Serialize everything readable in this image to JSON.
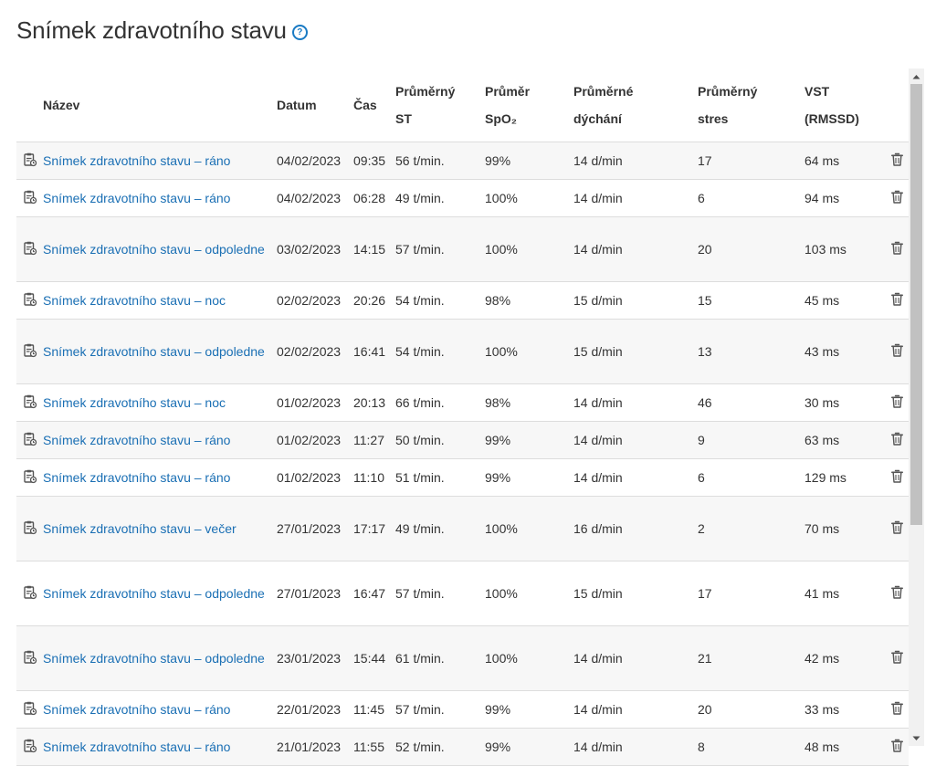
{
  "page": {
    "title": "Snímek zdravotního stavu"
  },
  "table": {
    "headers": {
      "name": "Název",
      "date": "Datum",
      "time": "Čas",
      "avg_hr": [
        "Průměrný",
        "ST"
      ],
      "avg_spo2": [
        "Průměr",
        "SpO₂"
      ],
      "avg_resp": [
        "Průměrné",
        "dýchání"
      ],
      "avg_stress": [
        "Průměrný",
        "stres"
      ],
      "hrv": [
        "VST",
        "(RMSSD)"
      ]
    },
    "rows": [
      {
        "name": "Snímek zdravotního stavu – ráno",
        "date": "04/02/2023",
        "time": "09:35",
        "hr": "56 t/min.",
        "spo2": "99%",
        "resp": "14 d/min",
        "stress": "17",
        "hrv": "64 ms"
      },
      {
        "name": "Snímek zdravotního stavu – ráno",
        "date": "04/02/2023",
        "time": "06:28",
        "hr": "49 t/min.",
        "spo2": "100%",
        "resp": "14 d/min",
        "stress": "6",
        "hrv": "94 ms"
      },
      {
        "name": "Snímek zdravotního stavu – odpoledne",
        "date": "03/02/2023",
        "time": "14:15",
        "hr": "57 t/min.",
        "spo2": "100%",
        "resp": "14 d/min",
        "stress": "20",
        "hrv": "103 ms"
      },
      {
        "name": "Snímek zdravotního stavu – noc",
        "date": "02/02/2023",
        "time": "20:26",
        "hr": "54 t/min.",
        "spo2": "98%",
        "resp": "15 d/min",
        "stress": "15",
        "hrv": "45 ms"
      },
      {
        "name": "Snímek zdravotního stavu – odpoledne",
        "date": "02/02/2023",
        "time": "16:41",
        "hr": "54 t/min.",
        "spo2": "100%",
        "resp": "15 d/min",
        "stress": "13",
        "hrv": "43 ms"
      },
      {
        "name": "Snímek zdravotního stavu – noc",
        "date": "01/02/2023",
        "time": "20:13",
        "hr": "66 t/min.",
        "spo2": "98%",
        "resp": "14 d/min",
        "stress": "46",
        "hrv": "30 ms"
      },
      {
        "name": "Snímek zdravotního stavu – ráno",
        "date": "01/02/2023",
        "time": "11:27",
        "hr": "50 t/min.",
        "spo2": "99%",
        "resp": "14 d/min",
        "stress": "9",
        "hrv": "63 ms"
      },
      {
        "name": "Snímek zdravotního stavu – ráno",
        "date": "01/02/2023",
        "time": "11:10",
        "hr": "51 t/min.",
        "spo2": "99%",
        "resp": "14 d/min",
        "stress": "6",
        "hrv": "129 ms"
      },
      {
        "name": "Snímek zdravotního stavu – večer",
        "date": "27/01/2023",
        "time": "17:17",
        "hr": "49 t/min.",
        "spo2": "100%",
        "resp": "16 d/min",
        "stress": "2",
        "hrv": "70 ms"
      },
      {
        "name": "Snímek zdravotního stavu – odpoledne",
        "date": "27/01/2023",
        "time": "16:47",
        "hr": "57 t/min.",
        "spo2": "100%",
        "resp": "15 d/min",
        "stress": "17",
        "hrv": "41 ms"
      },
      {
        "name": "Snímek zdravotního stavu – odpoledne",
        "date": "23/01/2023",
        "time": "15:44",
        "hr": "61 t/min.",
        "spo2": "100%",
        "resp": "14 d/min",
        "stress": "21",
        "hrv": "42 ms"
      },
      {
        "name": "Snímek zdravotního stavu – ráno",
        "date": "22/01/2023",
        "time": "11:45",
        "hr": "57 t/min.",
        "spo2": "99%",
        "resp": "14 d/min",
        "stress": "20",
        "hrv": "33 ms"
      },
      {
        "name": "Snímek zdravotního stavu – ráno",
        "date": "21/01/2023",
        "time": "11:55",
        "hr": "52 t/min.",
        "spo2": "99%",
        "resp": "14 d/min",
        "stress": "8",
        "hrv": "48 ms"
      }
    ]
  },
  "icons": {
    "help": "help-circle-icon",
    "row": "report-clipboard-icon",
    "delete": "trash-icon"
  },
  "colors": {
    "link": "#1a6fb4",
    "help": "#1a7bc4",
    "stripe": "#f7f7f7"
  }
}
